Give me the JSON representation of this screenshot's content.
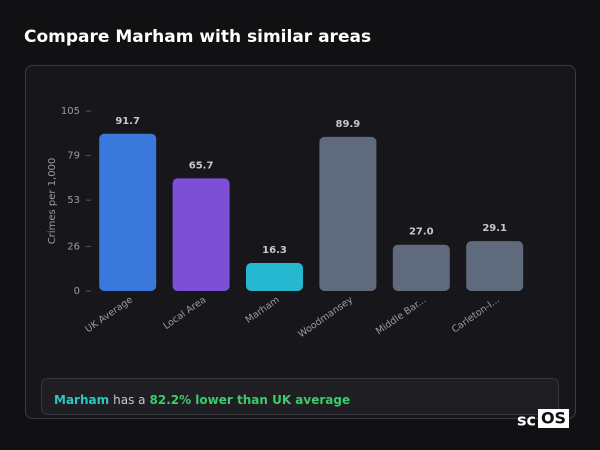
{
  "header": {
    "title": "Compare Marham with similar areas"
  },
  "chart_data": {
    "type": "bar",
    "y_label": "Crimes per 1,000",
    "categories": [
      "UK Average",
      "Local Area",
      "Marham",
      "Woodmansey",
      "Middle Bar...",
      "Carleton-I..."
    ],
    "values": [
      91.7,
      65.7,
      16.3,
      89.9,
      27.0,
      29.1
    ],
    "value_labels": [
      "91.7",
      "65.7",
      "16.3",
      "89.9",
      "27.0",
      "29.1"
    ],
    "colors": [
      "#3a78dc",
      "#7b4fd6",
      "#26b8d0",
      "#5f6b7c",
      "#5f6b7c",
      "#5f6b7c"
    ],
    "ylim": [
      0,
      105
    ],
    "yticks": [
      0,
      26,
      53,
      79,
      105
    ]
  },
  "summary": {
    "area": "Marham",
    "text": "has a",
    "highlight": "82.2% lower than UK average"
  },
  "logo": {
    "prefix": "sc",
    "box": "OS"
  }
}
